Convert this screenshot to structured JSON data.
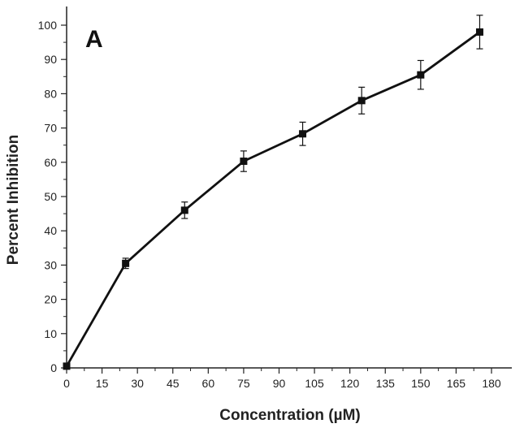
{
  "chart_data": {
    "type": "line",
    "panel_label": "A",
    "xlabel": "Concentration (µM)",
    "ylabel": "Percent Inhibition",
    "xlim": [
      0,
      190
    ],
    "ylim": [
      0,
      105
    ],
    "x_ticks": [
      0,
      15,
      30,
      45,
      60,
      75,
      90,
      105,
      120,
      135,
      150,
      165,
      180
    ],
    "y_ticks": [
      0,
      10,
      20,
      30,
      40,
      50,
      60,
      70,
      80,
      90,
      100
    ],
    "grid": false,
    "legend": "none",
    "series": [
      {
        "x": [
          0,
          25,
          50,
          75,
          100,
          125,
          150,
          175
        ],
        "y": [
          0.5,
          30.5,
          46,
          60.3,
          68.3,
          78,
          85.5,
          98
        ],
        "error": [
          0,
          1.5,
          2.4,
          3,
          3.4,
          3.9,
          4.2,
          4.9
        ],
        "color": "#111111",
        "marker": "square"
      }
    ]
  }
}
